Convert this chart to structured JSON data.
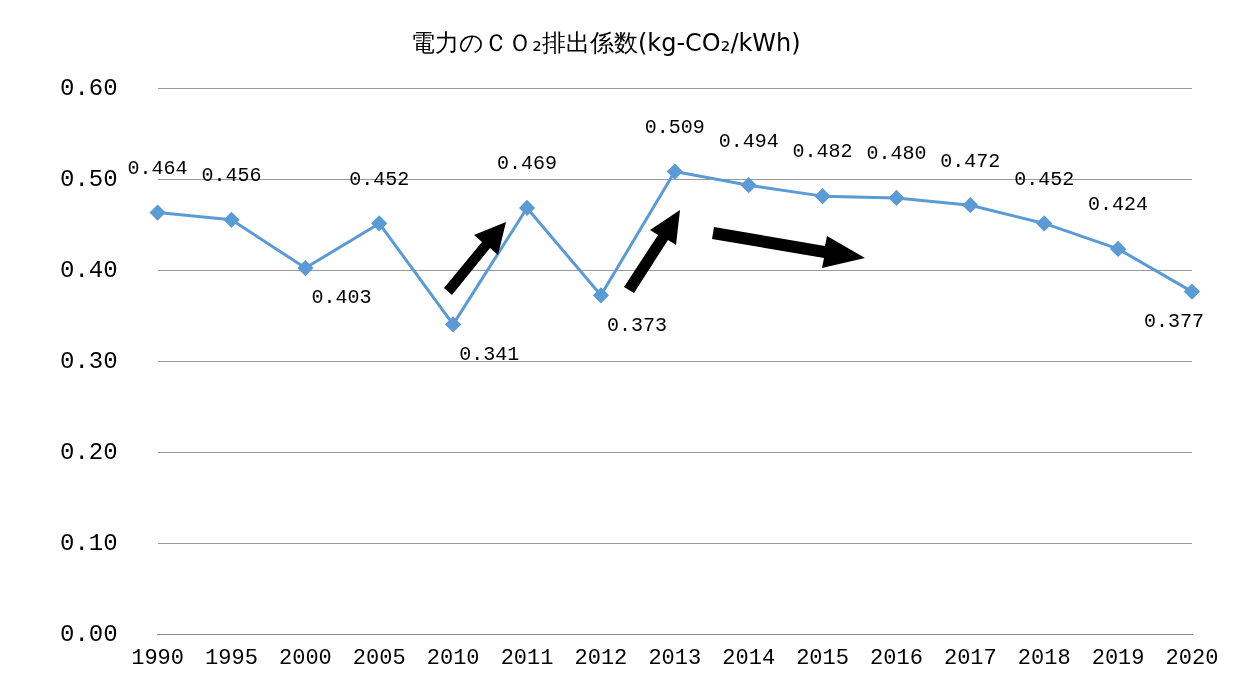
{
  "chart_data": {
    "type": "line",
    "title": "電力のＣＯ₂排出係数(kg-CO₂/kWh)",
    "categories": [
      "1990",
      "1995",
      "2000",
      "2005",
      "2010",
      "2011",
      "2012",
      "2013",
      "2014",
      "2015",
      "2016",
      "2017",
      "2018",
      "2019",
      "2020"
    ],
    "series": [
      {
        "color": "#5b9bd5",
        "values": [
          0.464,
          0.456,
          0.403,
          0.452,
          0.341,
          0.469,
          0.373,
          0.509,
          0.494,
          0.482,
          0.48,
          0.472,
          0.452,
          0.424,
          0.377
        ],
        "value_labels": [
          "0.464",
          "0.456",
          "0.403",
          "0.452",
          "0.341",
          "0.469",
          "0.373",
          "0.509",
          "0.494",
          "0.482",
          "0.480",
          "0.472",
          "0.452",
          "0.424",
          "0.377"
        ]
      }
    ],
    "ylim": [
      0,
      0.6
    ],
    "yticks": [
      {
        "value": 0,
        "label": "0.00"
      },
      {
        "value": 0.1,
        "label": "0.10"
      },
      {
        "value": 0.2,
        "label": "0.20"
      },
      {
        "value": 0.3,
        "label": "0.30"
      },
      {
        "value": 0.4,
        "label": "0.40"
      },
      {
        "value": 0.5,
        "label": "0.50"
      },
      {
        "value": 0.6,
        "label": "0.60"
      }
    ],
    "grid": "y",
    "legend": false,
    "marker": "diamond",
    "line_style": "solid"
  }
}
